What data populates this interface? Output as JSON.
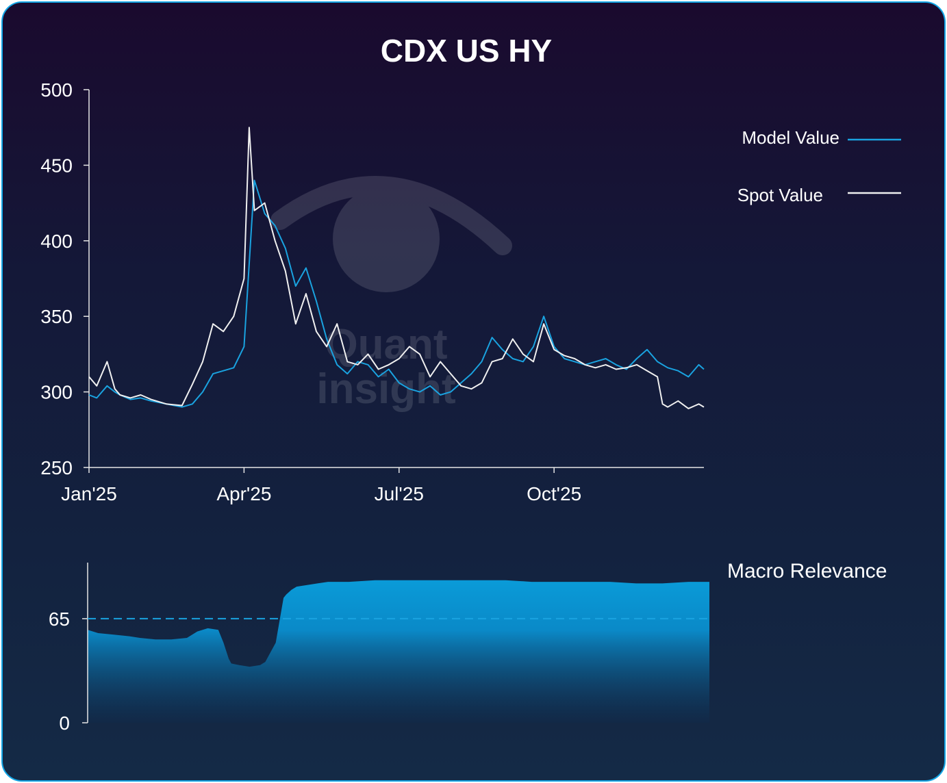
{
  "chart_data": [
    {
      "type": "line",
      "title": "CDX US HY",
      "x_tick_labels": [
        "Jan'25",
        "Apr'25",
        "Jul'25",
        "Oct'25"
      ],
      "x_tick_months": [
        0,
        3,
        6,
        9
      ],
      "x_range_months": [
        0,
        11.9
      ],
      "ylim": [
        250,
        500
      ],
      "y_ticks": [
        250,
        300,
        350,
        400,
        450,
        500
      ],
      "legend_placement": "top-right",
      "grid": false,
      "series": [
        {
          "name": "Model Value",
          "color": "#1aa3e0",
          "x": [
            0,
            0.15,
            0.35,
            0.5,
            0.6,
            0.8,
            1.0,
            1.2,
            1.5,
            1.8,
            2.0,
            2.2,
            2.4,
            2.6,
            2.8,
            3.0,
            3.2,
            3.4,
            3.6,
            3.8,
            4.0,
            4.2,
            4.4,
            4.6,
            4.8,
            5.0,
            5.2,
            5.4,
            5.6,
            5.8,
            6.0,
            6.2,
            6.4,
            6.6,
            6.8,
            7.0,
            7.2,
            7.4,
            7.6,
            7.8,
            8.0,
            8.2,
            8.4,
            8.6,
            8.8,
            9.0,
            9.2,
            9.4,
            9.6,
            9.8,
            10.0,
            10.2,
            10.4,
            10.6,
            10.8,
            11.0,
            11.2,
            11.4,
            11.6,
            11.8,
            11.9
          ],
          "y": [
            298,
            296,
            304,
            300,
            298,
            295,
            296,
            294,
            292,
            290,
            292,
            300,
            312,
            314,
            316,
            330,
            440,
            418,
            410,
            395,
            370,
            382,
            360,
            335,
            318,
            312,
            320,
            318,
            310,
            315,
            306,
            302,
            300,
            304,
            298,
            300,
            306,
            312,
            320,
            336,
            328,
            322,
            320,
            330,
            350,
            330,
            322,
            320,
            318,
            320,
            322,
            318,
            315,
            322,
            328,
            320,
            316,
            314,
            310,
            318,
            315
          ]
        },
        {
          "name": "Spot Value",
          "color": "#f0f0f0",
          "x": [
            0,
            0.15,
            0.35,
            0.5,
            0.6,
            0.8,
            1.0,
            1.2,
            1.5,
            1.8,
            2.0,
            2.2,
            2.4,
            2.6,
            2.8,
            3.0,
            3.1,
            3.2,
            3.4,
            3.6,
            3.8,
            4.0,
            4.2,
            4.4,
            4.6,
            4.8,
            5.0,
            5.2,
            5.4,
            5.6,
            5.8,
            6.0,
            6.2,
            6.4,
            6.6,
            6.8,
            7.0,
            7.2,
            7.4,
            7.6,
            7.8,
            8.0,
            8.2,
            8.4,
            8.6,
            8.8,
            9.0,
            9.2,
            9.4,
            9.6,
            9.8,
            10.0,
            10.2,
            10.4,
            10.6,
            10.8,
            11.0,
            11.1,
            11.2,
            11.4,
            11.6,
            11.8,
            11.9
          ],
          "y": [
            310,
            304,
            320,
            302,
            298,
            296,
            298,
            295,
            292,
            291,
            305,
            320,
            345,
            340,
            350,
            375,
            475,
            420,
            425,
            400,
            380,
            345,
            365,
            340,
            330,
            345,
            320,
            318,
            325,
            315,
            318,
            322,
            330,
            325,
            310,
            320,
            312,
            304,
            302,
            306,
            320,
            322,
            335,
            325,
            320,
            345,
            328,
            324,
            322,
            318,
            316,
            318,
            315,
            316,
            318,
            314,
            310,
            292,
            290,
            294,
            289,
            292,
            290
          ]
        }
      ]
    },
    {
      "type": "area",
      "title": "Macro Relevance",
      "ylim": [
        0,
        100
      ],
      "y_ticks": [
        0,
        65
      ],
      "reference_line": 65,
      "x_range_months": [
        0,
        11.9
      ],
      "color": "#0a9bd8",
      "x": [
        0,
        0.2,
        0.5,
        0.8,
        1.0,
        1.3,
        1.6,
        1.9,
        2.1,
        2.3,
        2.5,
        2.6,
        2.7,
        2.75,
        2.9,
        3.1,
        3.3,
        3.4,
        3.6,
        3.75,
        3.8,
        3.9,
        4.0,
        4.2,
        4.4,
        4.6,
        5.0,
        5.5,
        6.0,
        6.5,
        7.0,
        7.5,
        8.0,
        8.5,
        9.0,
        9.5,
        10.0,
        10.5,
        11.0,
        11.5,
        11.9
      ],
      "y": [
        58,
        56,
        55,
        54,
        53,
        52,
        52,
        53,
        57,
        59,
        58,
        50,
        40,
        37,
        36,
        35,
        36,
        38,
        50,
        78,
        80,
        83,
        85,
        86,
        87,
        88,
        88,
        89,
        89,
        89,
        89,
        89,
        89,
        88,
        88,
        88,
        88,
        87,
        87,
        88,
        88
      ]
    }
  ],
  "watermark": {
    "line1": "Quant",
    "line2": "insight"
  }
}
